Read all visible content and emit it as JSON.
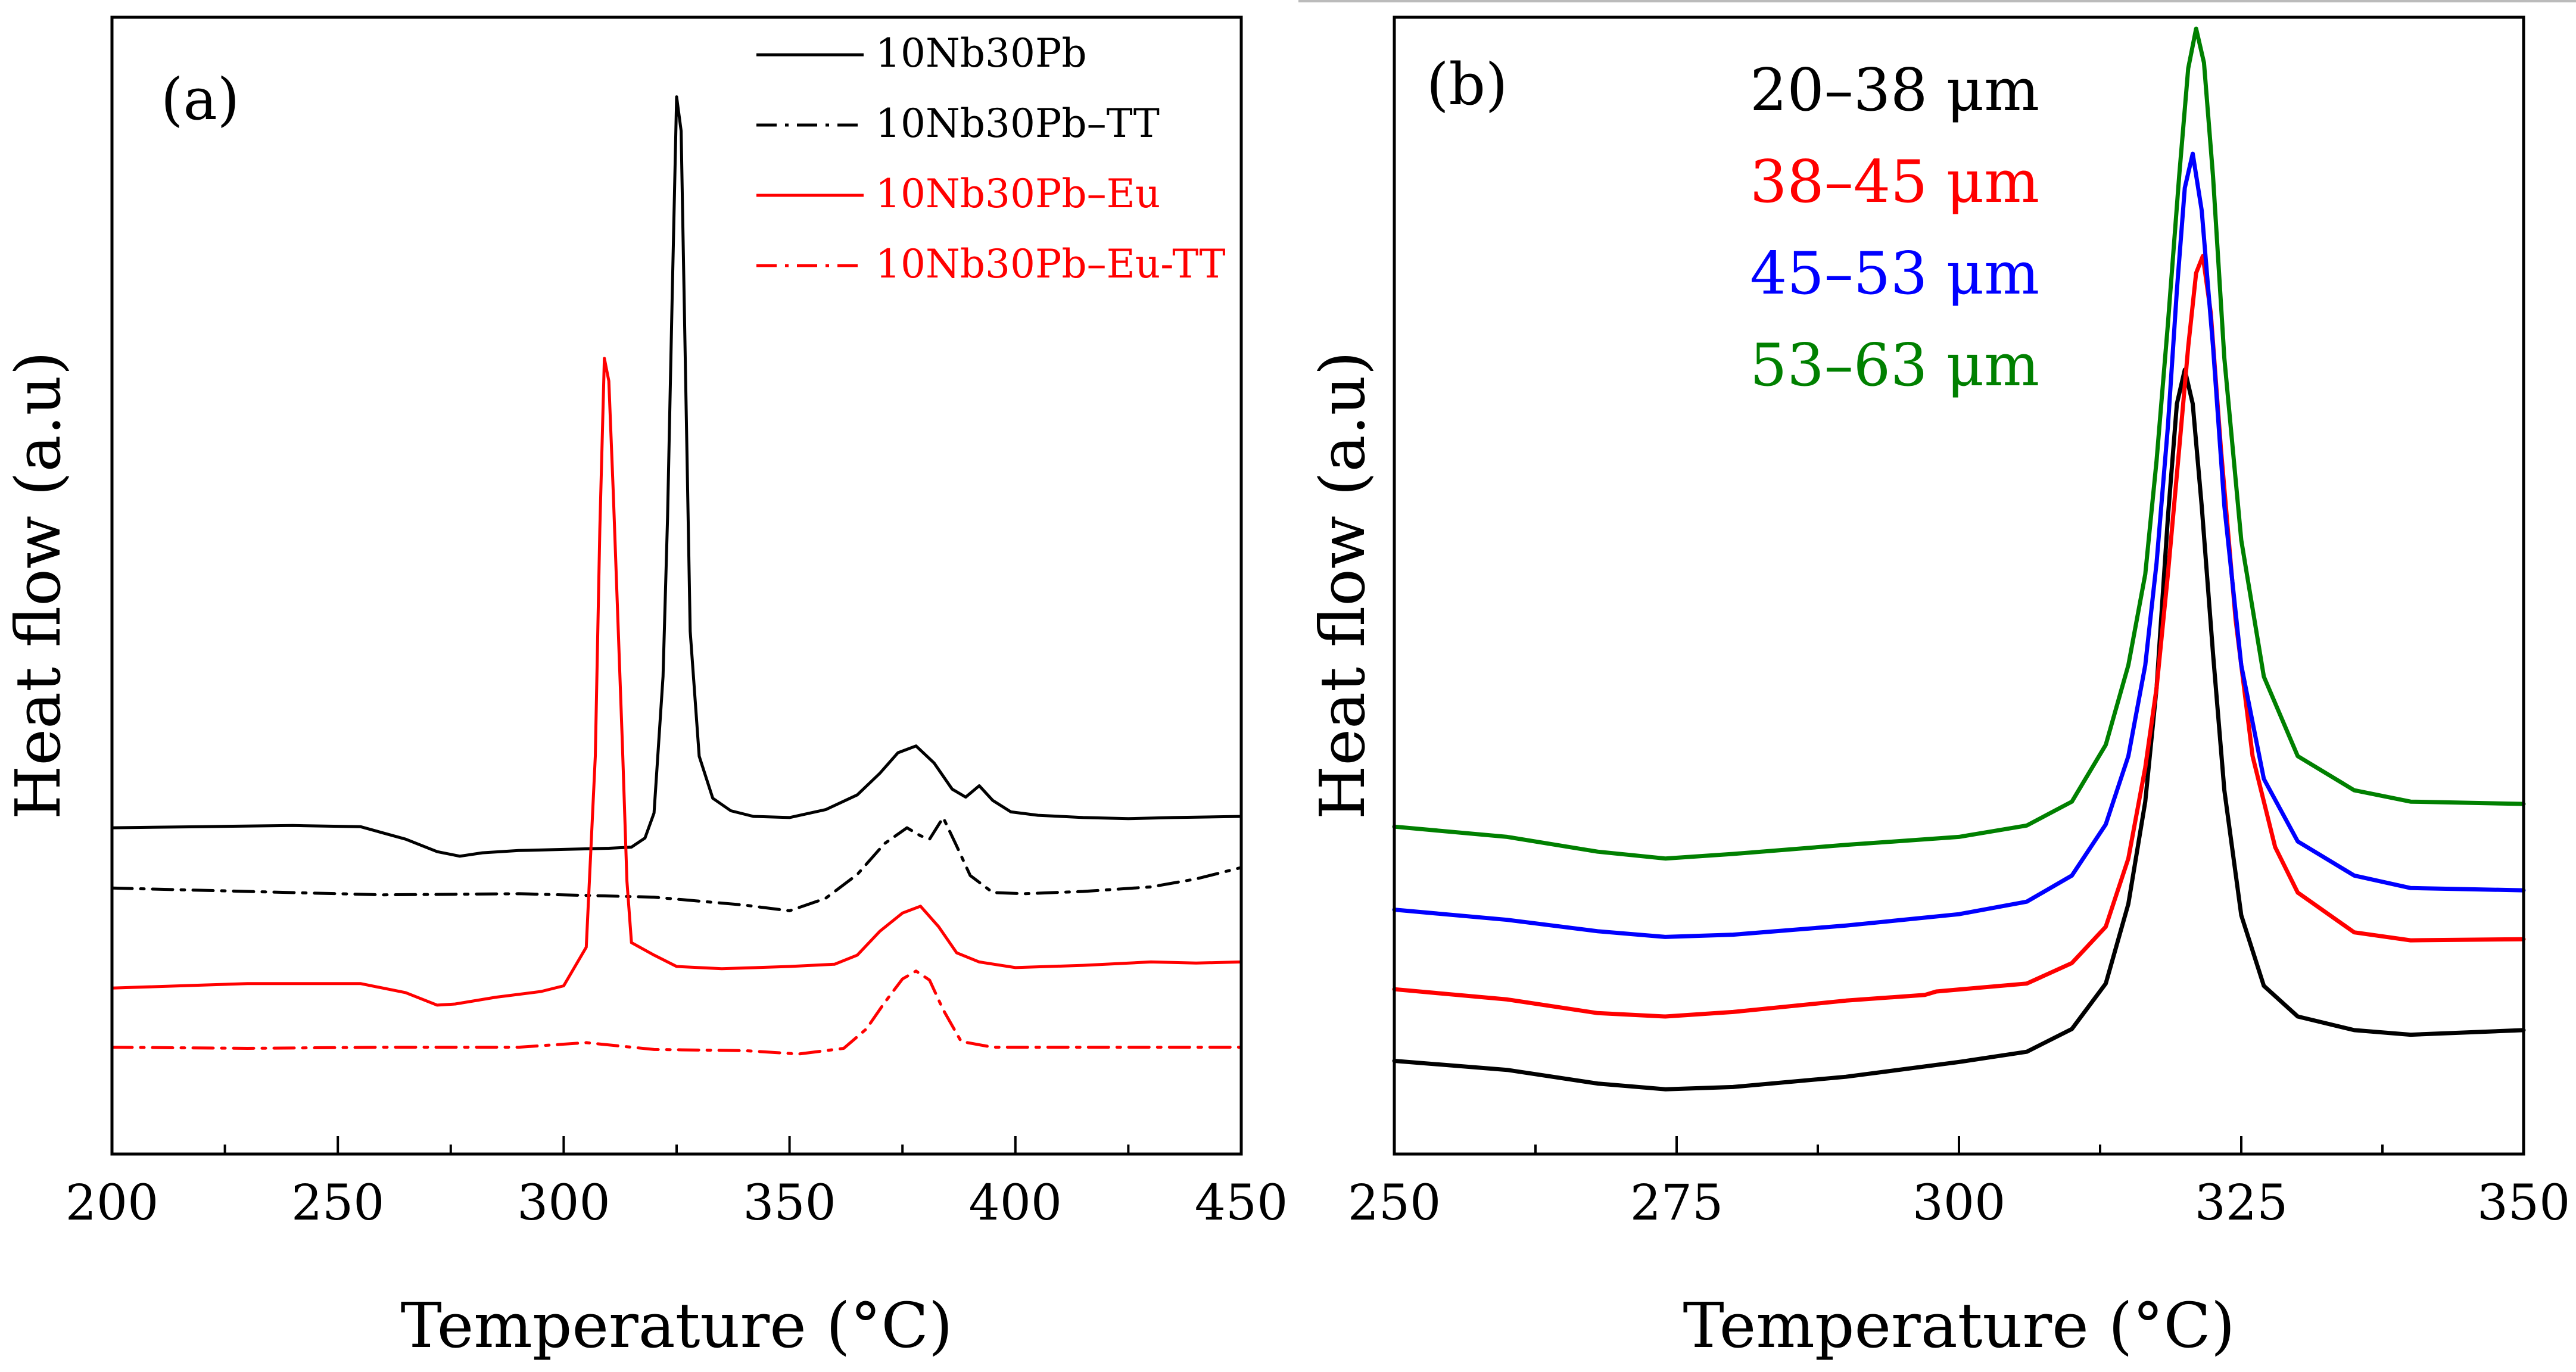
{
  "chart_data": [
    {
      "type": "line",
      "panel_label": "(a)",
      "xlabel": "Temperature (°C)",
      "ylabel": "Heat flow (a.u)",
      "xlim": [
        200,
        450
      ],
      "ylim": [
        0,
        100
      ],
      "xticks": [
        200,
        250,
        300,
        350,
        400,
        450
      ],
      "xtick_labels": [
        "200",
        "250",
        "300",
        "350",
        "400",
        "450"
      ],
      "legend": "top-right",
      "series": [
        {
          "name": "10Nb30Pb",
          "color": "#000000",
          "dash": "solid",
          "x": [
            200,
            220,
            240,
            255,
            265,
            272,
            277,
            282,
            290,
            300,
            310,
            315,
            318,
            320,
            322,
            323,
            324,
            325,
            326,
            327,
            328,
            330,
            333,
            337,
            342,
            350,
            358,
            365,
            370,
            374,
            378,
            382,
            386,
            389,
            392,
            395,
            399,
            405,
            415,
            425,
            435,
            450
          ],
          "y": [
            28.7,
            28.8,
            28.9,
            28.8,
            27.7,
            26.6,
            26.2,
            26.5,
            26.7,
            26.8,
            26.9,
            27.0,
            27.8,
            30.0,
            42.0,
            56.0,
            75.0,
            93.0,
            90.0,
            68.0,
            46.0,
            35.0,
            31.3,
            30.2,
            29.7,
            29.6,
            30.3,
            31.6,
            33.5,
            35.3,
            35.9,
            34.4,
            32.1,
            31.4,
            32.4,
            31.1,
            30.1,
            29.8,
            29.6,
            29.5,
            29.6,
            29.7
          ]
        },
        {
          "name": "10Nb30Pb–TT",
          "color": "#000000",
          "dash": "dashdot",
          "x": [
            200,
            230,
            260,
            290,
            320,
            340,
            350,
            358,
            365,
            371,
            376,
            379,
            381,
            384,
            387,
            390,
            395,
            402,
            415,
            430,
            440,
            450
          ],
          "y": [
            23.4,
            23.1,
            22.8,
            22.9,
            22.6,
            21.9,
            21.4,
            22.5,
            24.6,
            27.3,
            28.7,
            28.0,
            27.7,
            29.6,
            27.1,
            24.5,
            23.0,
            22.9,
            23.1,
            23.5,
            24.2,
            25.2
          ]
        },
        {
          "name": "10Nb30Pb–Eu",
          "color": "#ff0000",
          "dash": "solid",
          "x": [
            200,
            230,
            255,
            265,
            272,
            276,
            285,
            295,
            300,
            305,
            307,
            308,
            309,
            310,
            311,
            312,
            313,
            314,
            315,
            320,
            325,
            335,
            350,
            360,
            365,
            370,
            375,
            379,
            383,
            387,
            392,
            400,
            415,
            430,
            440,
            450
          ],
          "y": [
            14.6,
            15.0,
            15.0,
            14.2,
            13.1,
            13.2,
            13.8,
            14.3,
            14.8,
            18.2,
            35.0,
            55.0,
            70.0,
            68.0,
            58.0,
            47.0,
            36.0,
            24.0,
            18.6,
            17.5,
            16.5,
            16.3,
            16.5,
            16.7,
            17.5,
            19.6,
            21.2,
            21.8,
            20.0,
            17.7,
            16.9,
            16.4,
            16.6,
            16.9,
            16.8,
            16.9
          ]
        },
        {
          "name": "10Nb30Pb–Eu-TT",
          "color": "#ff0000",
          "dash": "dashdot",
          "x": [
            200,
            230,
            260,
            290,
            305,
            320,
            340,
            352,
            362,
            367,
            371,
            375,
            378,
            381,
            384,
            388,
            395,
            410,
            430,
            450
          ],
          "y": [
            9.4,
            9.3,
            9.4,
            9.4,
            9.8,
            9.2,
            9.1,
            8.8,
            9.3,
            11.0,
            13.3,
            15.4,
            16.1,
            15.3,
            12.7,
            9.9,
            9.4,
            9.4,
            9.4,
            9.4
          ]
        }
      ]
    },
    {
      "type": "line",
      "panel_label": "(b)",
      "xlabel": "Temperature (°C)",
      "ylabel": "Heat flow (a.u)",
      "xlim": [
        250,
        350
      ],
      "ylim": [
        0,
        100
      ],
      "xticks": [
        250,
        275,
        300,
        325,
        350
      ],
      "xtick_labels": [
        "250",
        "275",
        "300",
        "325",
        "350"
      ],
      "legend": "top-left",
      "series": [
        {
          "name": "20–38 μm",
          "color": "#000000",
          "dash": "solid",
          "x": [
            250,
            260,
            268,
            274,
            280,
            290,
            300,
            306,
            310,
            313,
            315,
            316.5,
            317.5,
            318.5,
            319.3,
            320,
            320.7,
            321.5,
            322.5,
            323.5,
            325,
            327,
            330,
            335,
            340,
            350
          ],
          "y": [
            8.2,
            7.4,
            6.2,
            5.7,
            5.9,
            6.8,
            8.1,
            9.0,
            11.0,
            15.0,
            22.0,
            31.0,
            41.0,
            56.0,
            66.0,
            69.0,
            66.0,
            57.0,
            44.0,
            32.0,
            21.0,
            14.8,
            12.1,
            10.9,
            10.5,
            10.9
          ]
        },
        {
          "name": "38–45 μm",
          "color": "#ff0000",
          "dash": "solid",
          "x": [
            250,
            260,
            268,
            274,
            280,
            290,
            297,
            298,
            306,
            310,
            313,
            315,
            316.5,
            317.5,
            318.5,
            319.5,
            320.3,
            321,
            321.6,
            322.3,
            323.2,
            324.5,
            326,
            328,
            330,
            335,
            340,
            350
          ],
          "y": [
            14.5,
            13.6,
            12.4,
            12.1,
            12.5,
            13.5,
            14.0,
            14.3,
            15.0,
            16.8,
            20.0,
            26.0,
            34.0,
            41.0,
            51.0,
            62.0,
            71.0,
            77.5,
            79.0,
            74.0,
            62.0,
            47.0,
            35.0,
            27.0,
            23.0,
            19.5,
            18.8,
            18.9
          ]
        },
        {
          "name": "45–53 μm",
          "color": "#0000ff",
          "dash": "solid",
          "x": [
            250,
            260,
            268,
            274,
            280,
            290,
            300,
            306,
            310,
            313,
            315,
            316.5,
            317.5,
            318.5,
            319.3,
            320,
            320.7,
            321.5,
            322.5,
            323.5,
            325,
            327,
            330,
            335,
            340,
            350
          ],
          "y": [
            21.5,
            20.6,
            19.6,
            19.1,
            19.3,
            20.1,
            21.1,
            22.2,
            24.5,
            29.0,
            35.0,
            43.0,
            52.0,
            64.0,
            76.0,
            85.0,
            88.0,
            83.0,
            71.0,
            57.0,
            43.0,
            33.0,
            27.5,
            24.5,
            23.4,
            23.2
          ]
        },
        {
          "name": "53–63 μm",
          "color": "#008000",
          "dash": "solid",
          "x": [
            250,
            260,
            268,
            274,
            280,
            290,
            300,
            306,
            310,
            313,
            315,
            316.5,
            317.5,
            318.5,
            319.5,
            320.3,
            321,
            321.7,
            322.5,
            323.5,
            325,
            327,
            330,
            335,
            340,
            350
          ],
          "y": [
            28.8,
            27.9,
            26.6,
            26.0,
            26.4,
            27.2,
            27.9,
            28.9,
            31.0,
            36.0,
            43.0,
            51.0,
            61.0,
            73.0,
            86.0,
            95.5,
            99.0,
            96.0,
            86.0,
            70.0,
            54.0,
            42.0,
            35.0,
            32.0,
            31.0,
            30.8
          ]
        }
      ]
    }
  ]
}
